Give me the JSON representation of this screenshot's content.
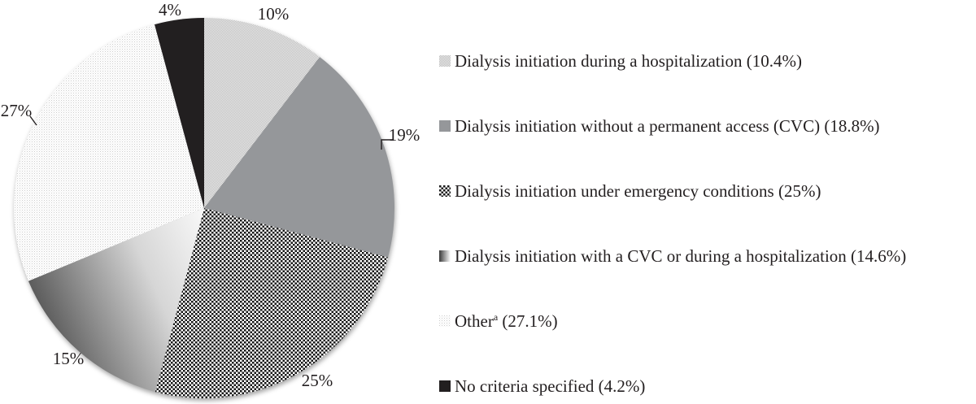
{
  "chart_data": {
    "type": "pie",
    "title": "",
    "direction": "clockwise",
    "start_angle_deg": 0,
    "slices": [
      {
        "label": "Dialysis initiation during a hospitalization",
        "value": 10.4,
        "pie_label": "10%",
        "pattern": "fine-checker-light"
      },
      {
        "label": "Dialysis initiation without a permanent access (CVC)",
        "value": 18.8,
        "pie_label": "19%",
        "pattern": "solid-gray"
      },
      {
        "label": "Dialysis initiation under emergency conditions",
        "value": 25.0,
        "pie_label": "25%",
        "pattern": "checkerboard"
      },
      {
        "label": "Dialysis initiation with a CVC or during a hospitalization",
        "value": 14.6,
        "pie_label": "15%",
        "pattern": "gradient-gray"
      },
      {
        "label": "Other",
        "superscript": "a",
        "value": 27.1,
        "pie_label": "27%",
        "pattern": "dotted-white"
      },
      {
        "label": "No criteria specified",
        "value": 4.2,
        "pie_label": "4%",
        "pattern": "solid-black"
      }
    ],
    "colors": {
      "solid_gray": "#95979a",
      "solid_black": "#221f20",
      "label_text": "#231f20",
      "checker_dark": "#161616",
      "texture_light_bg": "#bdbdbd",
      "dot_light": "#cccccc",
      "gradient_dark": "#5e5e5e"
    },
    "legend_position": "right"
  },
  "legend": {
    "items": [
      {
        "text_before": "Dialysis initiation during a hospitalization (10.4%)",
        "sup": "",
        "text_after": ""
      },
      {
        "text_before": "Dialysis initiation without a permanent access (CVC) (18.8%)",
        "sup": "",
        "text_after": ""
      },
      {
        "text_before": "Dialysis initiation under emergency conditions (25%)",
        "sup": "",
        "text_after": ""
      },
      {
        "text_before": "Dialysis initiation with a CVC or during a hospitalization (14.6%)",
        "sup": "",
        "text_after": ""
      },
      {
        "text_before": "Other",
        "sup": "a",
        "text_after": " (27.1%)"
      },
      {
        "text_before": "No criteria specified (4.2%)",
        "sup": "",
        "text_after": ""
      }
    ]
  }
}
